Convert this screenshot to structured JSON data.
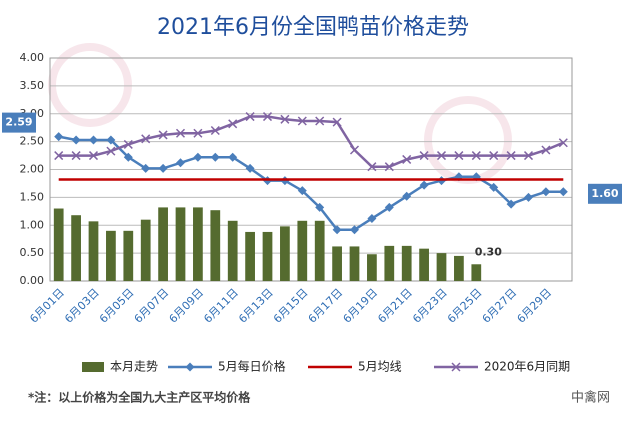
{
  "chart_data": {
    "type": "bar_line",
    "title": "2021年6月份全国鸭苗价格走势",
    "note": "*注：以上价格为全国九大主产区平均价格",
    "source": "中禽网",
    "categories": [
      "6月01日",
      null,
      "6月03日",
      null,
      "6月05日",
      null,
      "6月07日",
      null,
      "6月09日",
      null,
      "6月11日",
      null,
      "6月13日",
      null,
      "6月15日",
      null,
      "6月17日",
      null,
      "6月19日",
      null,
      "6月21日",
      null,
      "6月23日",
      null,
      "6月25日",
      null,
      "6月27日",
      null,
      "6月29日",
      null
    ],
    "ylim": [
      0,
      4
    ],
    "yticks": [
      {
        "value": 0,
        "label": "0.00"
      },
      {
        "value": 0.5,
        "label": "0.50"
      },
      {
        "value": 1,
        "label": "1.00"
      },
      {
        "value": 1.5,
        "label": "1.50"
      },
      {
        "value": 2,
        "label": "2.00"
      },
      {
        "value": 2.5,
        "label": "2.50"
      },
      {
        "value": 3,
        "label": "3.00"
      },
      {
        "value": 3.5,
        "label": "3.50"
      },
      {
        "value": 4,
        "label": "4.00"
      }
    ],
    "grid": true,
    "series": [
      {
        "name": "本月走势",
        "kind": "bar",
        "color": "#556b2f",
        "values": [
          1.3,
          1.18,
          1.07,
          0.9,
          0.9,
          1.1,
          1.32,
          1.32,
          1.32,
          1.27,
          1.08,
          0.88,
          0.88,
          0.98,
          1.08,
          1.08,
          0.62,
          0.62,
          0.48,
          0.63,
          0.63,
          0.58,
          0.5,
          0.45,
          0.3,
          null,
          null,
          null,
          null,
          null
        ],
        "value_labels": [
          null,
          null,
          null,
          null,
          null,
          null,
          null,
          null,
          null,
          null,
          null,
          null,
          null,
          null,
          null,
          null,
          null,
          null,
          null,
          null,
          null,
          null,
          null,
          null,
          "0.30",
          null,
          null,
          null,
          null,
          null
        ]
      },
      {
        "name": "5月每日价格",
        "kind": "line",
        "marker": "diamond",
        "color": "#4a7ebb",
        "values": [
          2.59,
          2.53,
          2.53,
          2.53,
          2.22,
          2.02,
          2.02,
          2.12,
          2.22,
          2.22,
          2.22,
          2.02,
          1.8,
          1.8,
          1.62,
          1.32,
          0.92,
          0.92,
          1.12,
          1.32,
          1.52,
          1.72,
          1.8,
          1.87,
          1.87,
          1.68,
          1.38,
          1.5,
          1.6,
          1.6
        ],
        "value_labels": [
          "2.59",
          null,
          null,
          null,
          null,
          null,
          null,
          null,
          null,
          null,
          null,
          null,
          null,
          null,
          null,
          null,
          null,
          null,
          null,
          null,
          null,
          null,
          null,
          null,
          null,
          null,
          null,
          null,
          null,
          "1.60"
        ]
      },
      {
        "name": "5月均线",
        "kind": "line",
        "marker": "none",
        "color": "#c00000",
        "values": [
          1.82,
          1.82,
          1.82,
          1.82,
          1.82,
          1.82,
          1.82,
          1.82,
          1.82,
          1.82,
          1.82,
          1.82,
          1.82,
          1.82,
          1.82,
          1.82,
          1.82,
          1.82,
          1.82,
          1.82,
          1.82,
          1.82,
          1.82,
          1.82,
          1.82,
          1.82,
          1.82,
          1.82,
          1.82,
          1.82
        ]
      },
      {
        "name": "2020年6月同期",
        "kind": "line",
        "marker": "x",
        "color": "#8064a2",
        "values": [
          2.25,
          2.25,
          2.25,
          2.33,
          2.45,
          2.55,
          2.62,
          2.65,
          2.65,
          2.7,
          2.82,
          2.95,
          2.95,
          2.9,
          2.87,
          2.87,
          2.85,
          2.35,
          2.05,
          2.05,
          2.18,
          2.25,
          2.25,
          2.25,
          2.25,
          2.25,
          2.25,
          2.25,
          2.35,
          2.48
        ]
      }
    ]
  }
}
